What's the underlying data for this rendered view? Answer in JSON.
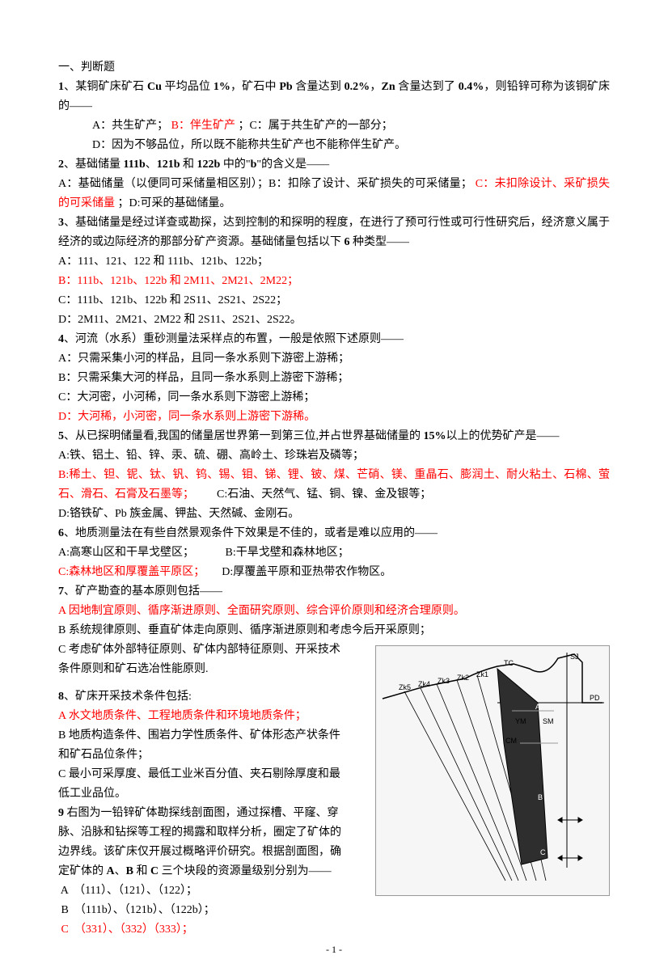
{
  "header": {
    "title": "一、判断题"
  },
  "q1": {
    "stem_parts": [
      {
        "t": "1",
        "bold": true
      },
      {
        "t": "、某铜矿床矿石 "
      },
      {
        "t": "Cu",
        "bold": true
      },
      {
        "t": " 平均品位 "
      },
      {
        "t": "1%",
        "bold": true
      },
      {
        "t": "，矿石中 "
      },
      {
        "t": "Pb",
        "bold": true
      },
      {
        "t": " 含量达到 "
      },
      {
        "t": "0.2%",
        "bold": true
      },
      {
        "t": "，"
      },
      {
        "t": "Zn",
        "bold": true
      },
      {
        "t": " 含量达到了 "
      },
      {
        "t": "0.4%",
        "bold": true
      },
      {
        "t": "，则铅锌可称为该铜矿床的——"
      }
    ],
    "optA_pre": "A：共生矿产；",
    "optB": "B：伴生矿产",
    "optA_post": "；C：属于共生矿产的一部分；",
    "optD": "D：因为不够品位，所以既不能称共生矿产也不能称伴生矿产。"
  },
  "q2": {
    "stem_parts": [
      {
        "t": "2",
        "bold": true
      },
      {
        "t": "、基础储量 "
      },
      {
        "t": "111b",
        "bold": true
      },
      {
        "t": "、"
      },
      {
        "t": "121b",
        "bold": true
      },
      {
        "t": " 和 "
      },
      {
        "t": "122b",
        "bold": true
      },
      {
        "t": " 中的\""
      },
      {
        "t": "b",
        "bold": true
      },
      {
        "t": "\"的含义是——"
      }
    ],
    "line2_pre": "A：基础储量（以便同可采储量相区别）；B：扣除了设计、采矿损失的可采储量；",
    "line2_red": "C：未扣除设计、采矿损失的可采储量",
    "line2_post": "；D:可采的基础储量。"
  },
  "q3": {
    "stem_parts": [
      {
        "t": "3",
        "bold": true
      },
      {
        "t": "、基础储量是经过详查或勘探，达到控制的和探明的程度，在进行了预可行性或可行性研究后，经济意义属于经济的或边际经济的那部分矿产资源。基础储量包括以下 "
      },
      {
        "t": "6",
        "bold": true
      },
      {
        "t": " 种类型——"
      }
    ],
    "optA": "A：111、121、122 和 111b、121b、122b；",
    "optB": "B：111b、121b、122b 和 2M11、2M21、2M22；",
    "optC": "C：111b、121b、122b 和 2S11、2S21、2S22；",
    "optD": "D：2M11、2M21、2M22 和 2S11、2S21、2S22。"
  },
  "q4": {
    "stem_parts": [
      {
        "t": "4",
        "bold": true
      },
      {
        "t": "、河流（水系）重砂测量法采样点的布置，一般是依照下述原则——"
      }
    ],
    "optA": "A：只需采集小河的样品，且同一条水系则下游密上游稀；",
    "optB": "B：只需采集大河的样品，且同一条水系则上游密下游稀；",
    "optC": "C：大河密，小河稀，同一条水系则下游密上游稀；",
    "optD": "D：大河稀，小河密，同一条水系则上游密下游稀。"
  },
  "q5": {
    "stem_parts": [
      {
        "t": "5",
        "bold": true
      },
      {
        "t": "、从已探明储量看,我国的储量居世界第一到第三位,并占世界基础储量的 "
      },
      {
        "t": "15%",
        "bold": true
      },
      {
        "t": "以上的优势矿产是——"
      }
    ],
    "optA": "A:铁、铝土、铅、锌、汞、硫、硼、高岭土、珍珠岩及磷等；",
    "optB_pre": "B:稀土、钽、铌、钛、钒、钨、锡、钼、锑、锂、铍、煤、芒硝、镁、重晶石、膨润土、耐火粘土、石棉、萤石、滑石、石膏及石墨等；",
    "optC_inline": "       C:石油、天然气、锰、铜、镍、金及银等；",
    "optD": "D:铬铁矿、Pb 族金属、钾盐、天然碱、金刚石。"
  },
  "q6": {
    "stem_parts": [
      {
        "t": "6",
        "bold": true
      },
      {
        "t": "、地质测量法在有些自然景观条件下效果是不佳的，或者是难以应用的——"
      }
    ],
    "optA": "A:高寒山区和干旱戈壁区；",
    "optB": "          B:干旱戈壁和森林地区；",
    "optC": "C:森林地区和厚覆盖平原区；",
    "optD": "     D:厚覆盖平原和亚热带农作物区。"
  },
  "q7": {
    "stem_parts": [
      {
        "t": "7",
        "bold": true
      },
      {
        "t": "、矿产勘查的基本原则包括——"
      }
    ],
    "optA": "A 因地制宜原则、循序渐进原则、全面研究原则、综合评价原则和经济合理原则。",
    "optB": "B 系统规律原则、垂直矿体走向原则、循序渐进原则和考虑今后开采原则；",
    "optC_l1": "C 考虑矿体外部特征原则、矿体内部特征原则、开采技术",
    "optC_l2": "条件原则和矿石选冶性能原则."
  },
  "q8": {
    "stem_parts": [
      {
        "t": "8",
        "bold": true
      },
      {
        "t": "、矿床开采技术条件包括:"
      }
    ],
    "optA": "A 水文地质条件、工程地质条件和环境地质条件；",
    "optB_l1": "B 地质构造条件、围岩力学性质条件、矿体形态产状条件",
    "optB_l2": "和矿石品位条件；",
    "optC_l1": "C 最小可采厚度、最低工业米百分值、夹石剔除厚度和最",
    "optC_l2": "低工业品位。"
  },
  "q9": {
    "stem_l1_parts": [
      {
        "t": "9",
        "bold": true
      },
      {
        "t": " 右图为一铅锌矿体勘探线剖面图，通过探槽、平窿、穿"
      }
    ],
    "stem_l2": "脉、沿脉和钻探等工程的揭露和取样分析，圈定了矿体的",
    "stem_l3": "边界线。该矿床仅开展过概略评价研究。根据剖面图，确",
    "stem_l4_parts": [
      {
        "t": "定矿体的 "
      },
      {
        "t": "A",
        "bold": true
      },
      {
        "t": "、"
      },
      {
        "t": "B",
        "bold": true
      },
      {
        "t": " 和 "
      },
      {
        "t": "C",
        "bold": true
      },
      {
        "t": " 三个块段的资源量级别分别为——"
      }
    ],
    "optA": " A  （111）、（121）、（122）；",
    "optB": " B  （111b）、（121b）、（122b）；",
    "optC": " C  （331）、（332）（333）；"
  },
  "diagram": {
    "labels": {
      "SJ": "SJ",
      "PD": "PD",
      "TC": "TC",
      "SM": "SM",
      "YM": "YM",
      "CM": "CM",
      "A": "A",
      "B": "B",
      "C": "C",
      "Zk5": "Zk5",
      "Zk4": "Zk4",
      "Zk3": "Zk3",
      "Zk2": "Zk2",
      "Zk1": "Zk1"
    },
    "colors": {
      "stroke": "#000000",
      "fill_light": "#f2f2f2",
      "fill_dark": "#2e2e2e",
      "grid": "#9a9a9a",
      "bg": "#f6f6f6"
    },
    "font_size": 9
  },
  "footer": "- 1 -"
}
